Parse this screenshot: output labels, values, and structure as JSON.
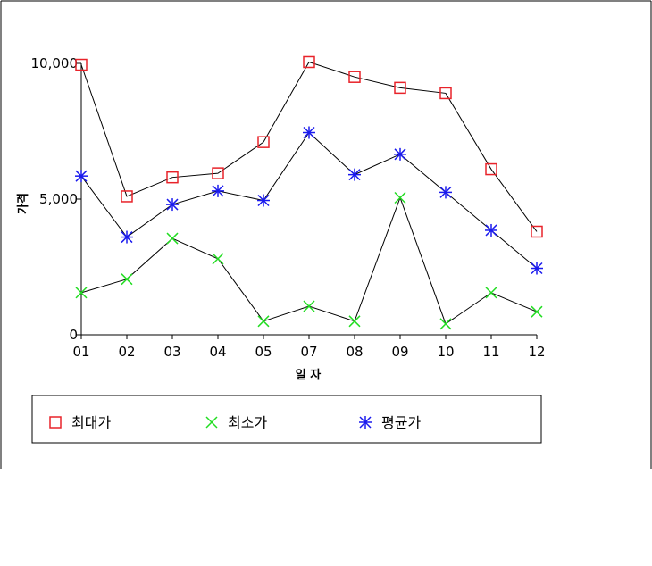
{
  "chart_data": {
    "type": "line",
    "title": "",
    "xlabel": "일 자",
    "ylabel": "가격",
    "categories": [
      "01",
      "02",
      "03",
      "04",
      "05",
      "07",
      "08",
      "09",
      "10",
      "11",
      "12"
    ],
    "ylim": [
      0,
      10000
    ],
    "yticks": [
      0,
      5000,
      10000
    ],
    "ytick_labels": [
      "0",
      "5,000",
      "10,000"
    ],
    "grid": false,
    "legend_position": "bottom",
    "series": [
      {
        "name": "최대가",
        "marker": "square",
        "color": "#e8232a",
        "values": [
          9950,
          5100,
          5800,
          5950,
          7100,
          10050,
          9500,
          9100,
          8900,
          6100,
          3800
        ]
      },
      {
        "name": "최소가",
        "marker": "x",
        "color": "#22dd22",
        "values": [
          1550,
          2050,
          3550,
          2800,
          500,
          1050,
          500,
          5050,
          400,
          1550,
          850
        ]
      },
      {
        "name": "평균가",
        "marker": "asterisk",
        "color": "#1a1aee",
        "values": [
          5850,
          3600,
          4800,
          5300,
          4950,
          7450,
          5900,
          6650,
          5250,
          3850,
          2450
        ]
      }
    ],
    "line_color": "#000000"
  }
}
